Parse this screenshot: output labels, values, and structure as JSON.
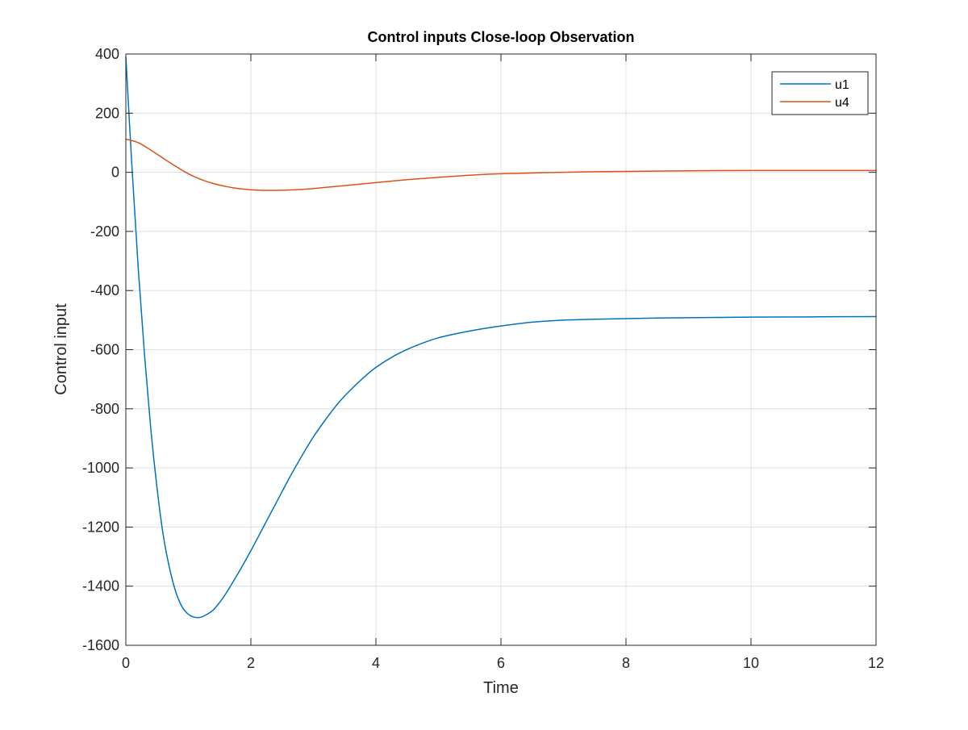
{
  "chart_data": {
    "type": "line",
    "title": "Control inputs Close-loop Observation",
    "xlabel": "Time",
    "ylabel": "Control input",
    "xlim": [
      0,
      12
    ],
    "ylim": [
      -1600,
      400
    ],
    "xticks": [
      0,
      2,
      4,
      6,
      8,
      10,
      12
    ],
    "yticks": [
      400,
      200,
      0,
      -200,
      -400,
      -600,
      -800,
      -1000,
      -1200,
      -1400,
      -1600
    ],
    "grid": true,
    "legend_position": "top-right",
    "series": [
      {
        "name": "u1",
        "color": "#0072BD",
        "x": [
          0,
          0.1,
          0.2,
          0.3,
          0.4,
          0.5,
          0.6,
          0.7,
          0.8,
          0.9,
          1.0,
          1.1,
          1.2,
          1.3,
          1.4,
          1.5,
          1.6,
          1.8,
          2.0,
          2.2,
          2.4,
          2.6,
          2.8,
          3.0,
          3.2,
          3.4,
          3.6,
          3.8,
          4.0,
          4.3,
          4.6,
          5.0,
          5.5,
          6.0,
          6.5,
          7.0,
          7.5,
          8.0,
          8.5,
          9.0,
          10.0,
          11.0,
          12.0
        ],
        "y": [
          390,
          10,
          -330,
          -620,
          -870,
          -1070,
          -1230,
          -1340,
          -1420,
          -1470,
          -1495,
          -1505,
          -1505,
          -1495,
          -1480,
          -1455,
          -1425,
          -1355,
          -1280,
          -1200,
          -1120,
          -1040,
          -965,
          -895,
          -835,
          -780,
          -735,
          -695,
          -660,
          -620,
          -590,
          -560,
          -537,
          -520,
          -507,
          -500,
          -497,
          -495,
          -493,
          -492,
          -490,
          -489,
          -488
        ]
      },
      {
        "name": "u4",
        "color": "#D95319",
        "x": [
          0,
          0.2,
          0.4,
          0.6,
          0.8,
          1.0,
          1.2,
          1.4,
          1.6,
          1.8,
          2.0,
          2.2,
          2.4,
          2.6,
          2.8,
          3.0,
          3.5,
          4.0,
          4.5,
          5.0,
          5.5,
          6.0,
          7.0,
          8.0,
          9.0,
          10.0,
          11.0,
          12.0
        ],
        "y": [
          112,
          100,
          75,
          47,
          20,
          -5,
          -24,
          -38,
          -48,
          -55,
          -59,
          -61,
          -61,
          -60,
          -58,
          -55,
          -45,
          -35,
          -25,
          -17,
          -10,
          -5,
          0,
          3,
          5,
          6,
          6,
          6
        ]
      }
    ]
  }
}
